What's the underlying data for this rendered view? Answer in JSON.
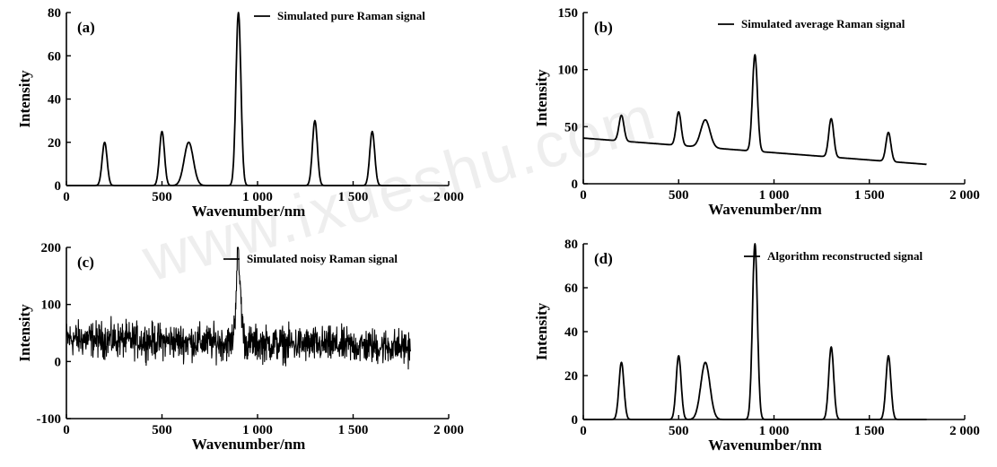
{
  "watermark": "www.ixueshu.com",
  "chart_data": [
    {
      "type": "line",
      "panel_label": "(a)",
      "legend": "Simulated pure Raman signal",
      "xlabel": "Wavenumber/nm",
      "ylabel": "Intensity",
      "xlim": [
        0,
        2000
      ],
      "ylim": [
        0,
        80
      ],
      "xticks": [
        "0",
        "500",
        "1 000",
        "1 500",
        "2 000"
      ],
      "xtick_values": [
        0,
        500,
        1000,
        1500,
        2000
      ],
      "yticks": [
        "0",
        "20",
        "40",
        "60",
        "80"
      ],
      "ytick_values": [
        0,
        20,
        40,
        60,
        80
      ],
      "x_range": [
        0,
        1800
      ],
      "baseline": {
        "type": "constant",
        "start": 0,
        "end": 0
      },
      "noise": 0,
      "peaks": [
        {
          "x": 200,
          "height": 20
        },
        {
          "x": 500,
          "height": 25
        },
        {
          "x": 640,
          "height": 20
        },
        {
          "x": 900,
          "height": 80
        },
        {
          "x": 1300,
          "height": 30
        },
        {
          "x": 1600,
          "height": 25
        }
      ]
    },
    {
      "type": "line",
      "panel_label": "(b)",
      "legend": "Simulated average Raman signal",
      "xlabel": "Wavenumber/nm",
      "ylabel": "Intensity",
      "xlim": [
        0,
        2000
      ],
      "ylim": [
        0,
        150
      ],
      "xticks": [
        "0",
        "500",
        "1 000",
        "1 500",
        "2 000"
      ],
      "xtick_values": [
        0,
        500,
        1000,
        1500,
        2000
      ],
      "yticks": [
        "0",
        "50",
        "100",
        "150"
      ],
      "ytick_values": [
        0,
        50,
        100,
        150
      ],
      "x_range": [
        0,
        1800
      ],
      "baseline": {
        "type": "linear",
        "start": 40,
        "end": 17
      },
      "noise": 0,
      "peaks": [
        {
          "x": 200,
          "height": 60
        },
        {
          "x": 500,
          "height": 63
        },
        {
          "x": 640,
          "height": 56
        },
        {
          "x": 900,
          "height": 113
        },
        {
          "x": 1300,
          "height": 57
        },
        {
          "x": 1600,
          "height": 45
        }
      ]
    },
    {
      "type": "line",
      "panel_label": "(c)",
      "legend": "Simulated noisy Raman signal",
      "xlabel": "Wavenumber/nm",
      "ylabel": "Intensity",
      "xlim": [
        0,
        2000
      ],
      "ylim": [
        -100,
        200
      ],
      "xticks": [
        "0",
        "500",
        "1 000",
        "1 500",
        "2 000"
      ],
      "xtick_values": [
        0,
        500,
        1000,
        1500,
        2000
      ],
      "yticks": [
        "-100",
        "0",
        "100",
        "200"
      ],
      "ytick_values": [
        -100,
        0,
        100,
        200
      ],
      "x_range": [
        0,
        1800
      ],
      "baseline": {
        "type": "linear",
        "start": 40,
        "end": 25
      },
      "noise": 38,
      "peaks": [
        {
          "x": 900,
          "height": 160
        }
      ]
    },
    {
      "type": "line",
      "panel_label": "(d)",
      "legend": "Algorithm reconstructed signal",
      "xlabel": "Wavenumber/nm",
      "ylabel": "Intensity",
      "xlim": [
        0,
        2000
      ],
      "ylim": [
        0,
        80
      ],
      "xticks": [
        "0",
        "500",
        "1 000",
        "1 500",
        "2 000"
      ],
      "xtick_values": [
        0,
        500,
        1000,
        1500,
        2000
      ],
      "yticks": [
        "0",
        "20",
        "40",
        "60",
        "80"
      ],
      "ytick_values": [
        0,
        20,
        40,
        60,
        80
      ],
      "x_range": [
        0,
        1800
      ],
      "baseline": {
        "type": "constant",
        "start": 0,
        "end": 0
      },
      "noise": 0,
      "peaks": [
        {
          "x": 200,
          "height": 26
        },
        {
          "x": 500,
          "height": 29
        },
        {
          "x": 640,
          "height": 26
        },
        {
          "x": 900,
          "height": 80
        },
        {
          "x": 1300,
          "height": 33
        },
        {
          "x": 1600,
          "height": 29
        }
      ]
    }
  ]
}
